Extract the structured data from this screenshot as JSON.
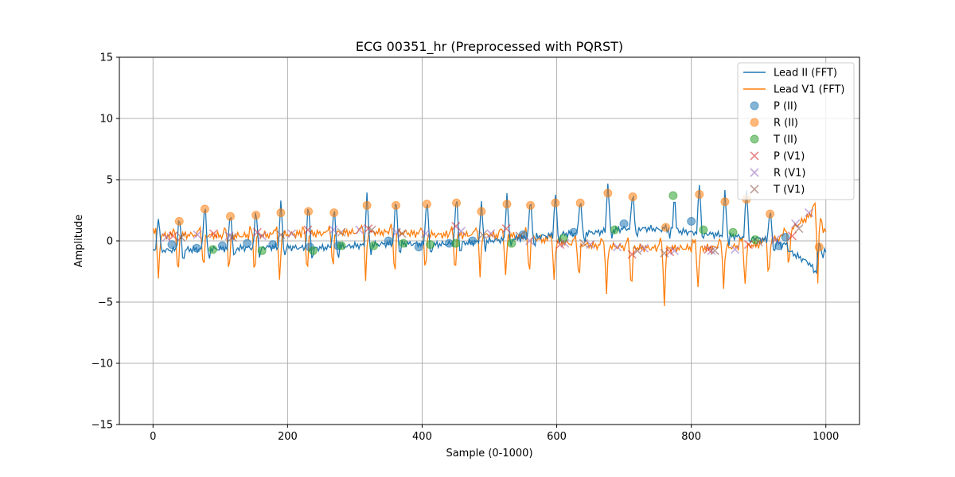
{
  "chart_data": {
    "type": "line",
    "title": "ECG 00351_hr (Preprocessed with PQRST)",
    "xlabel": "Sample (0-1000)",
    "ylabel": "Amplitude",
    "xlim": [
      -50,
      1050
    ],
    "ylim": [
      -15,
      15
    ],
    "xticks": [
      0,
      200,
      400,
      600,
      800,
      1000
    ],
    "yticks": [
      -15,
      -10,
      -5,
      0,
      5,
      10,
      15
    ],
    "xtick_labels": [
      "0",
      "200",
      "400",
      "600",
      "800",
      "1000"
    ],
    "ytick_labels": [
      "−15",
      "−10",
      "−5",
      "0",
      "5",
      "10",
      "15"
    ],
    "grid": true,
    "legend_position": "top-right",
    "colors": {
      "lead_ii": "#1f77b4",
      "lead_v1": "#ff7f0e",
      "t_marker": "#2ca02c",
      "p_v1_marker": "#d62728",
      "r_v1_marker": "#9467bd",
      "t_v1_marker": "#8c564b"
    },
    "r_peaks_ii": [
      {
        "x": 39,
        "y": 1.6
      },
      {
        "x": 77,
        "y": 2.6
      },
      {
        "x": 115,
        "y": 2.0
      },
      {
        "x": 153,
        "y": 2.1
      },
      {
        "x": 190,
        "y": 2.3
      },
      {
        "x": 231,
        "y": 2.4
      },
      {
        "x": 269,
        "y": 2.3
      },
      {
        "x": 318,
        "y": 2.9
      },
      {
        "x": 361,
        "y": 2.9
      },
      {
        "x": 407,
        "y": 3.0
      },
      {
        "x": 451,
        "y": 3.1
      },
      {
        "x": 488,
        "y": 2.4
      },
      {
        "x": 526,
        "y": 3.0
      },
      {
        "x": 561,
        "y": 2.9
      },
      {
        "x": 598,
        "y": 3.1
      },
      {
        "x": 635,
        "y": 3.1
      },
      {
        "x": 676,
        "y": 3.9
      },
      {
        "x": 713,
        "y": 3.6
      },
      {
        "x": 762,
        "y": 1.1
      },
      {
        "x": 812,
        "y": 3.8
      },
      {
        "x": 850,
        "y": 3.2
      },
      {
        "x": 882,
        "y": 3.4
      },
      {
        "x": 917,
        "y": 2.2
      },
      {
        "x": 990,
        "y": -0.5
      }
    ],
    "series": [
      {
        "name": "Lead II (FFT)",
        "baseline": [
          [
            0,
            -0.8
          ],
          [
            60,
            -0.7
          ],
          [
            120,
            -0.6
          ],
          [
            180,
            -0.5
          ],
          [
            240,
            -0.6
          ],
          [
            300,
            -0.4
          ],
          [
            360,
            -0.2
          ],
          [
            420,
            -0.3
          ],
          [
            480,
            -0.1
          ],
          [
            540,
            0.2
          ],
          [
            580,
            0.4
          ],
          [
            620,
            0.6
          ],
          [
            660,
            0.7
          ],
          [
            700,
            1.0
          ],
          [
            740,
            1.0
          ],
          [
            780,
            0.8
          ],
          [
            820,
            0.6
          ],
          [
            860,
            0.4
          ],
          [
            900,
            0.2
          ],
          [
            930,
            -0.2
          ],
          [
            950,
            -1.0
          ],
          [
            975,
            -1.8
          ],
          [
            985,
            -2.6
          ],
          [
            995,
            -0.7
          ],
          [
            1000,
            -0.9
          ]
        ]
      },
      {
        "name": "Lead V1 (FFT)",
        "baseline": [
          [
            0,
            0.4
          ],
          [
            60,
            0.5
          ],
          [
            120,
            0.4
          ],
          [
            180,
            0.5
          ],
          [
            240,
            0.6
          ],
          [
            300,
            0.7
          ],
          [
            360,
            0.7
          ],
          [
            420,
            0.5
          ],
          [
            480,
            0.5
          ],
          [
            540,
            0.4
          ],
          [
            580,
            0.1
          ],
          [
            620,
            -0.2
          ],
          [
            660,
            -0.4
          ],
          [
            700,
            -0.5
          ],
          [
            740,
            -0.6
          ],
          [
            780,
            -0.6
          ],
          [
            820,
            -0.6
          ],
          [
            860,
            -0.5
          ],
          [
            900,
            -0.3
          ],
          [
            930,
            0.2
          ],
          [
            955,
            1.2
          ],
          [
            975,
            2.0
          ],
          [
            990,
            2.8
          ],
          [
            995,
            0.8
          ],
          [
            1000,
            1.0
          ]
        ],
        "troughs": [
          -3.2,
          -3.3,
          -2.8,
          -2.9,
          -3.0,
          -3.4,
          -3.0,
          -2.8,
          -3.2,
          -3.2,
          -3.1,
          -3.0,
          -2.9,
          -3.0,
          -3.0,
          -3.2,
          -3.6,
          -4.3,
          -4.4,
          -5.1,
          -3.7,
          -3.6,
          -3.5,
          -3.5,
          -3.2,
          -2.8
        ]
      }
    ],
    "markers": [
      {
        "name": "P (II)",
        "shape": "circle",
        "color": "#1f77b4",
        "points": [
          [
            28,
            -0.3
          ],
          [
            65,
            -0.6
          ],
          [
            103,
            -0.4
          ],
          [
            140,
            -0.2
          ],
          [
            178,
            -0.3
          ],
          [
            233,
            -0.5
          ],
          [
            275,
            -0.4
          ],
          [
            350,
            0.0
          ],
          [
            395,
            -0.5
          ],
          [
            440,
            -0.2
          ],
          [
            475,
            0.0
          ],
          [
            550,
            0.5
          ],
          [
            625,
            0.7
          ],
          [
            700,
            1.4
          ],
          [
            800,
            1.6
          ],
          [
            930,
            -0.4
          ],
          [
            940,
            0.3
          ]
        ]
      },
      {
        "name": "R (II)",
        "shape": "circle",
        "color": "#ff7f0e",
        "points": [
          [
            39,
            1.6
          ],
          [
            77,
            2.6
          ],
          [
            115,
            2.0
          ],
          [
            153,
            2.1
          ],
          [
            190,
            2.3
          ],
          [
            231,
            2.4
          ],
          [
            269,
            2.3
          ],
          [
            318,
            2.9
          ],
          [
            361,
            2.9
          ],
          [
            407,
            3.0
          ],
          [
            451,
            3.1
          ],
          [
            488,
            2.4
          ],
          [
            526,
            3.0
          ],
          [
            561,
            2.9
          ],
          [
            598,
            3.1
          ],
          [
            635,
            3.1
          ],
          [
            676,
            3.9
          ],
          [
            713,
            3.6
          ],
          [
            762,
            1.1
          ],
          [
            812,
            3.8
          ],
          [
            850,
            3.2
          ],
          [
            882,
            3.4
          ],
          [
            917,
            2.2
          ],
          [
            990,
            -0.5
          ]
        ]
      },
      {
        "name": "T (II)",
        "shape": "circle",
        "color": "#2ca02c",
        "points": [
          [
            89,
            -0.7
          ],
          [
            162,
            -0.8
          ],
          [
            238,
            -0.8
          ],
          [
            280,
            -0.4
          ],
          [
            328,
            -0.4
          ],
          [
            372,
            -0.2
          ],
          [
            412,
            -0.3
          ],
          [
            450,
            -0.2
          ],
          [
            533,
            -0.2
          ],
          [
            610,
            0.2
          ],
          [
            686,
            0.9
          ],
          [
            773,
            3.7
          ],
          [
            818,
            0.9
          ],
          [
            862,
            0.7
          ],
          [
            895,
            0.1
          ]
        ]
      },
      {
        "name": "P (V1)",
        "shape": "x",
        "color": "#d62728",
        "points": [
          [
            30,
            0.4
          ],
          [
            90,
            0.6
          ],
          [
            155,
            0.7
          ],
          [
            230,
            0.9
          ],
          [
            320,
            1.0
          ],
          [
            450,
            1.2
          ],
          [
            525,
            1.0
          ],
          [
            605,
            -0.3
          ],
          [
            712,
            -1.1
          ],
          [
            768,
            -0.9
          ],
          [
            825,
            -0.7
          ],
          [
            885,
            -0.3
          ],
          [
            950,
            0.4
          ]
        ]
      },
      {
        "name": "R (V1)",
        "shape": "x",
        "color": "#9467bd",
        "points": [
          [
            20,
            0.3
          ],
          [
            66,
            0.5
          ],
          [
            113,
            0.4
          ],
          [
            162,
            0.4
          ],
          [
            206,
            0.6
          ],
          [
            268,
            0.9
          ],
          [
            307,
            0.9
          ],
          [
            362,
            0.7
          ],
          [
            405,
            0.6
          ],
          [
            458,
            0.8
          ],
          [
            502,
            0.6
          ],
          [
            560,
            0.0
          ],
          [
            612,
            -0.2
          ],
          [
            650,
            -0.3
          ],
          [
            690,
            -0.5
          ],
          [
            730,
            -0.6
          ],
          [
            775,
            -0.8
          ],
          [
            830,
            -0.8
          ],
          [
            865,
            -0.7
          ],
          [
            925,
            0.1
          ],
          [
            955,
            1.4
          ],
          [
            975,
            2.3
          ]
        ]
      },
      {
        "name": "T (V1)",
        "shape": "x",
        "color": "#8c564b",
        "points": [
          [
            42,
            0.3
          ],
          [
            118,
            0.3
          ],
          [
            190,
            0.5
          ],
          [
            280,
            0.7
          ],
          [
            325,
            0.9
          ],
          [
            370,
            0.6
          ],
          [
            490,
            0.5
          ],
          [
            545,
            0.4
          ],
          [
            640,
            -0.2
          ],
          [
            720,
            -0.8
          ],
          [
            760,
            -1.0
          ],
          [
            835,
            -0.8
          ],
          [
            900,
            -0.1
          ],
          [
            960,
            1.0
          ]
        ]
      }
    ],
    "legend": [
      {
        "label": "Lead II (FFT)",
        "kind": "line",
        "color": "#1f77b4"
      },
      {
        "label": "Lead V1 (FFT)",
        "kind": "line",
        "color": "#ff7f0e"
      },
      {
        "label": "P (II)",
        "kind": "circle",
        "color": "#1f77b4"
      },
      {
        "label": "R (II)",
        "kind": "circle",
        "color": "#ff7f0e"
      },
      {
        "label": "T (II)",
        "kind": "circle",
        "color": "#2ca02c"
      },
      {
        "label": "P (V1)",
        "kind": "x",
        "color": "#d62728"
      },
      {
        "label": "R (V1)",
        "kind": "x",
        "color": "#9467bd"
      },
      {
        "label": "T (V1)",
        "kind": "x",
        "color": "#8c564b"
      }
    ]
  }
}
